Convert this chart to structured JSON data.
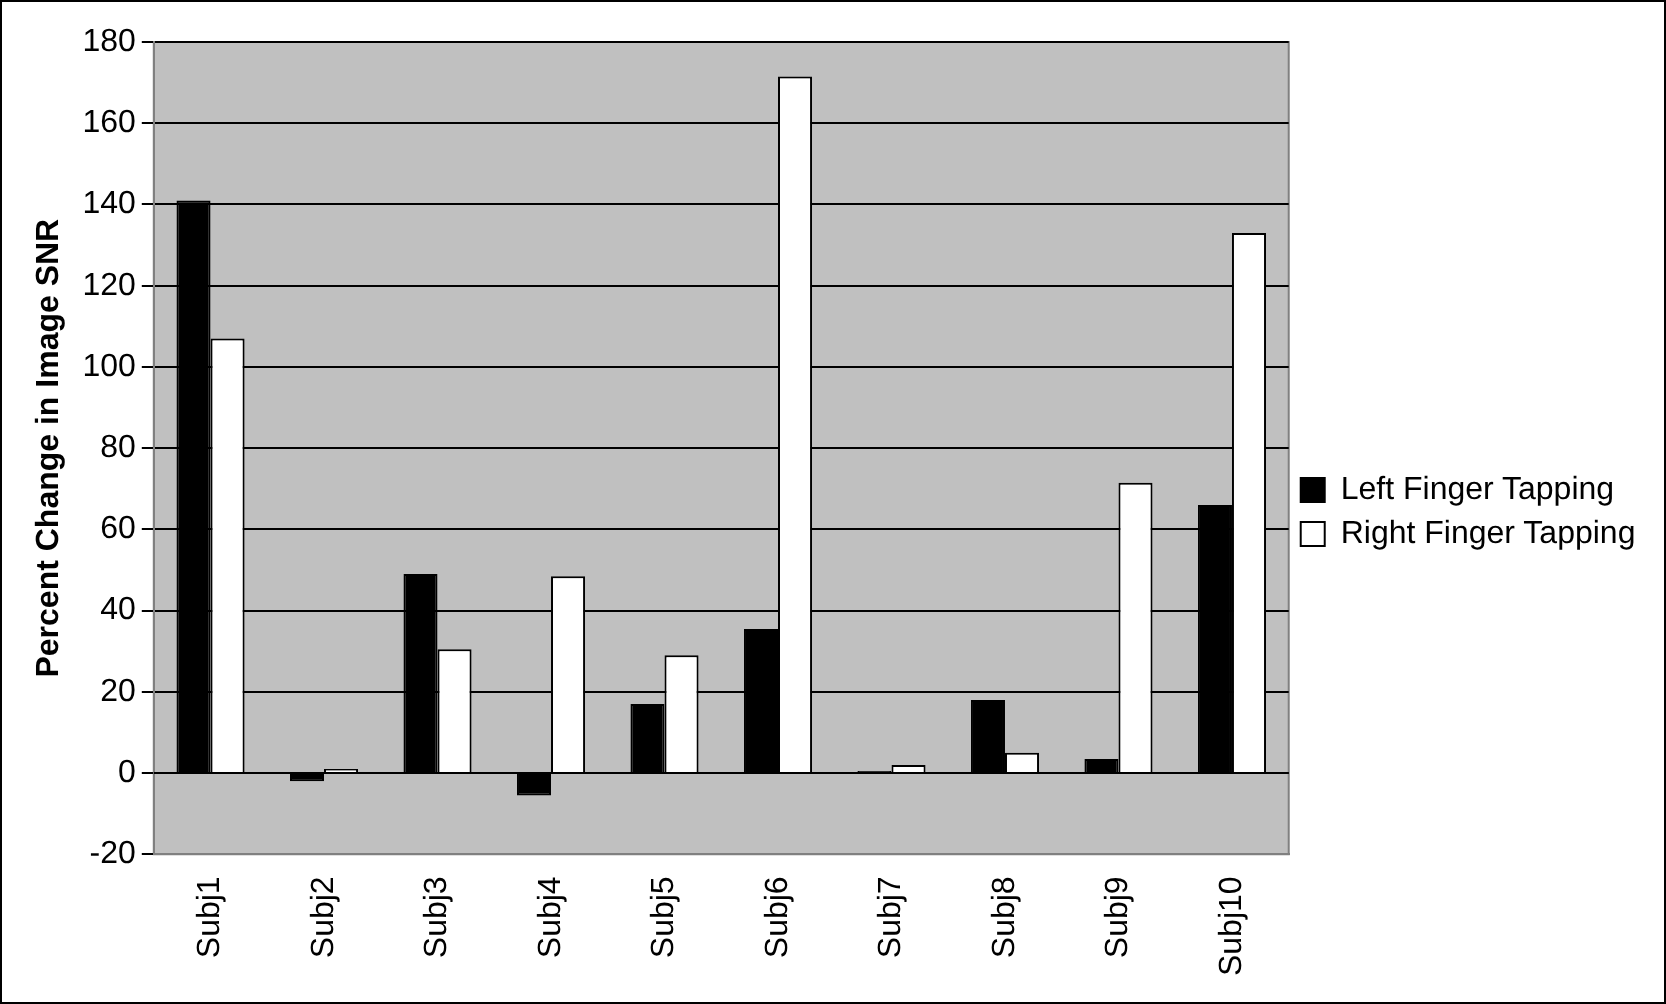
{
  "chart_data": {
    "type": "bar",
    "ylabel": "Percent Change in Image SNR",
    "categories": [
      "Subj1",
      "Subj2",
      "Subj3",
      "Subj4",
      "Subj5",
      "Subj6",
      "Subj7",
      "Subj8",
      "Subj9",
      "Subj10"
    ],
    "series": [
      {
        "name": "Left Finger Tapping",
        "color": "#000000",
        "values": [
          141,
          -2,
          49,
          -5.5,
          17,
          35.5,
          0.5,
          18,
          3.5,
          66
        ]
      },
      {
        "name": "Right Finger Tapping",
        "color": "#ffffff",
        "values": [
          107,
          1,
          30.5,
          48.5,
          29,
          171.5,
          2,
          5,
          71.5,
          133
        ]
      }
    ],
    "ylim": [
      -20,
      180
    ],
    "yticks": [
      -20,
      0,
      20,
      40,
      60,
      80,
      100,
      120,
      140,
      160,
      180
    ],
    "grid": "y",
    "legend": "right"
  }
}
